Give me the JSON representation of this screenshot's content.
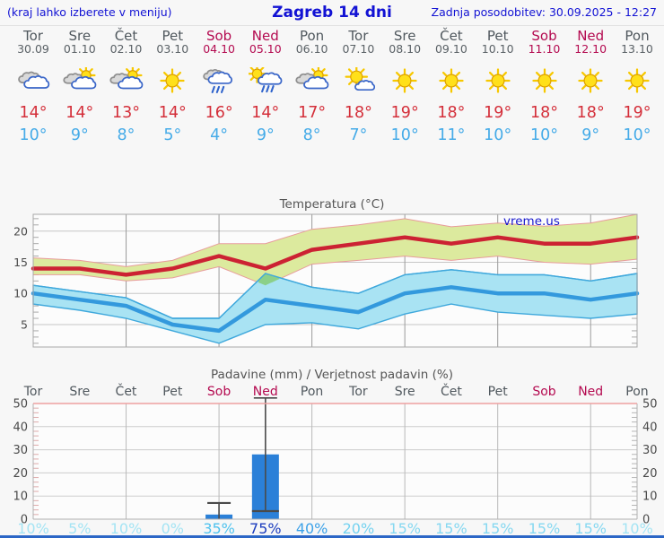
{
  "header": {
    "left": "(kraj lahko izberete v meniju)",
    "title": "Zagreb 14 dni",
    "updated": "Zadnja posodobitev: 30.09.2025 - 12:27"
  },
  "colors": {
    "header_blue": "#1212d4",
    "day_gray": "#50585e",
    "weekend_red": "#b40a50",
    "tmax_red": "#d42f3a",
    "tmin_blue": "#45abe8",
    "bottom_bar": "#2b66c6"
  },
  "days": [
    {
      "name": "Tor",
      "date": "30.09",
      "weekend": false,
      "icon": "cloudy",
      "tmax": "14°",
      "tmin": "10°",
      "prob": "10%",
      "prob_color": "#a4e4f4"
    },
    {
      "name": "Sre",
      "date": "01.10",
      "weekend": false,
      "icon": "partly-cloudy",
      "tmax": "14°",
      "tmin": "9°",
      "prob": "5%",
      "prob_color": "#a4e4f4"
    },
    {
      "name": "Čet",
      "date": "02.10",
      "weekend": false,
      "icon": "partly-cloudy",
      "tmax": "13°",
      "tmin": "8°",
      "prob": "10%",
      "prob_color": "#a4e4f4"
    },
    {
      "name": "Pet",
      "date": "03.10",
      "weekend": false,
      "icon": "sunny",
      "tmax": "14°",
      "tmin": "5°",
      "prob": "0%",
      "prob_color": "#a4e4f4"
    },
    {
      "name": "Sob",
      "date": "04.10",
      "weekend": true,
      "icon": "rain",
      "tmax": "16°",
      "tmin": "4°",
      "prob": "35%",
      "prob_color": "#4fc2ee"
    },
    {
      "name": "Ned",
      "date": "05.10",
      "weekend": true,
      "icon": "sun-rain",
      "tmax": "14°",
      "tmin": "9°",
      "prob": "75%",
      "prob_color": "#1c3dbe"
    },
    {
      "name": "Pon",
      "date": "06.10",
      "weekend": false,
      "icon": "partly-cloudy",
      "tmax": "17°",
      "tmin": "8°",
      "prob": "40%",
      "prob_color": "#3da2e8"
    },
    {
      "name": "Tor",
      "date": "07.10",
      "weekend": false,
      "icon": "mostly-sunny",
      "tmax": "18°",
      "tmin": "7°",
      "prob": "20%",
      "prob_color": "#74d2f0"
    },
    {
      "name": "Sre",
      "date": "08.10",
      "weekend": false,
      "icon": "sunny",
      "tmax": "19°",
      "tmin": "10°",
      "prob": "15%",
      "prob_color": "#86d8f1"
    },
    {
      "name": "Čet",
      "date": "09.10",
      "weekend": false,
      "icon": "sunny",
      "tmax": "18°",
      "tmin": "11°",
      "prob": "15%",
      "prob_color": "#86d8f1"
    },
    {
      "name": "Pet",
      "date": "10.10",
      "weekend": false,
      "icon": "sunny",
      "tmax": "19°",
      "tmin": "10°",
      "prob": "15%",
      "prob_color": "#86d8f1"
    },
    {
      "name": "Sob",
      "date": "11.10",
      "weekend": true,
      "icon": "sunny",
      "tmax": "18°",
      "tmin": "10°",
      "prob": "15%",
      "prob_color": "#86d8f1"
    },
    {
      "name": "Ned",
      "date": "12.10",
      "weekend": true,
      "icon": "sunny",
      "tmax": "18°",
      "tmin": "9°",
      "prob": "15%",
      "prob_color": "#86d8f1"
    },
    {
      "name": "Pon",
      "date": "13.10",
      "weekend": false,
      "icon": "sunny",
      "tmax": "19°",
      "tmin": "10°",
      "prob": "10%",
      "prob_color": "#a4e4f4"
    }
  ],
  "chart_data": [
    {
      "type": "line",
      "title": "Temperatura (°C)",
      "watermark": "vreme.us",
      "categories": [
        "Tor 30.09",
        "Sre 01.10",
        "Čet 02.10",
        "Pet 03.10",
        "Sob 04.10",
        "Ned 05.10",
        "Pon 06.10",
        "Tor 07.10",
        "Sre 08.10",
        "Čet 09.10",
        "Pet 10.10",
        "Sob 11.10",
        "Ned 12.10",
        "Pon 13.10"
      ],
      "ylim": [
        1.4,
        22.7
      ],
      "yticks": [
        5,
        10,
        15,
        20
      ],
      "grid": true,
      "series": [
        {
          "name": "max_temp",
          "color": "#cc2233",
          "values": [
            14,
            14,
            13,
            14,
            16,
            14,
            17,
            18,
            19,
            18,
            19,
            18,
            18,
            19
          ]
        },
        {
          "name": "min_temp",
          "color": "#3399dd",
          "values": [
            10,
            9,
            8,
            5,
            4,
            9,
            8,
            7,
            10,
            11,
            10,
            10,
            9,
            10
          ]
        },
        {
          "name": "max_band_upper",
          "values": [
            15.7,
            15.3,
            14.3,
            15.3,
            18,
            18,
            20.3,
            21,
            22,
            20.7,
            21.3,
            20.8,
            21.3,
            22.7
          ]
        },
        {
          "name": "max_band_lower",
          "values": [
            13,
            13,
            12,
            12.5,
            14.3,
            11.3,
            14.7,
            15.3,
            16,
            15.3,
            16,
            15,
            14.7,
            15.5
          ]
        },
        {
          "name": "min_band_upper",
          "values": [
            11.3,
            10.3,
            9.3,
            6,
            6,
            13.2,
            11,
            10,
            13,
            13.8,
            13,
            13,
            12,
            13.2
          ]
        },
        {
          "name": "min_band_lower",
          "values": [
            8.3,
            7.3,
            6,
            4,
            2,
            5,
            5.3,
            4.3,
            6.7,
            8.3,
            7,
            6.5,
            6,
            6.7
          ]
        }
      ],
      "band_colors": {
        "max": "#dcea9e",
        "max_edge": "#e89b9b",
        "min": "#a9e3f3",
        "min_edge": "#3fa8dc",
        "overlap": "#8bd089"
      }
    },
    {
      "type": "bar",
      "title": "Padavine (mm) / Verjetnost padavin (%)",
      "categories": [
        "Tor",
        "Sre",
        "Čet",
        "Pet",
        "Sob",
        "Ned",
        "Pon",
        "Tor",
        "Sre",
        "Čet",
        "Pet",
        "Sob",
        "Ned",
        "Pon"
      ],
      "values": [
        0,
        0,
        0,
        0,
        2,
        28,
        0,
        0,
        0,
        0,
        0,
        0,
        0,
        0
      ],
      "whiskers": [
        null,
        null,
        null,
        null,
        [
          0,
          7
        ],
        [
          3.5,
          52.5
        ],
        null,
        null,
        null,
        null,
        null,
        null,
        null,
        null
      ],
      "probabilities": [
        "10%",
        "5%",
        "10%",
        "0%",
        "35%",
        "75%",
        "40%",
        "20%",
        "15%",
        "15%",
        "15%",
        "15%",
        "15%",
        "10%"
      ],
      "ylim": [
        0,
        50
      ],
      "yticks": [
        0,
        10,
        20,
        30,
        40,
        50
      ],
      "grid": true,
      "bar_color": "#2b80d8",
      "whisker_color": "#4a4a4a"
    }
  ]
}
